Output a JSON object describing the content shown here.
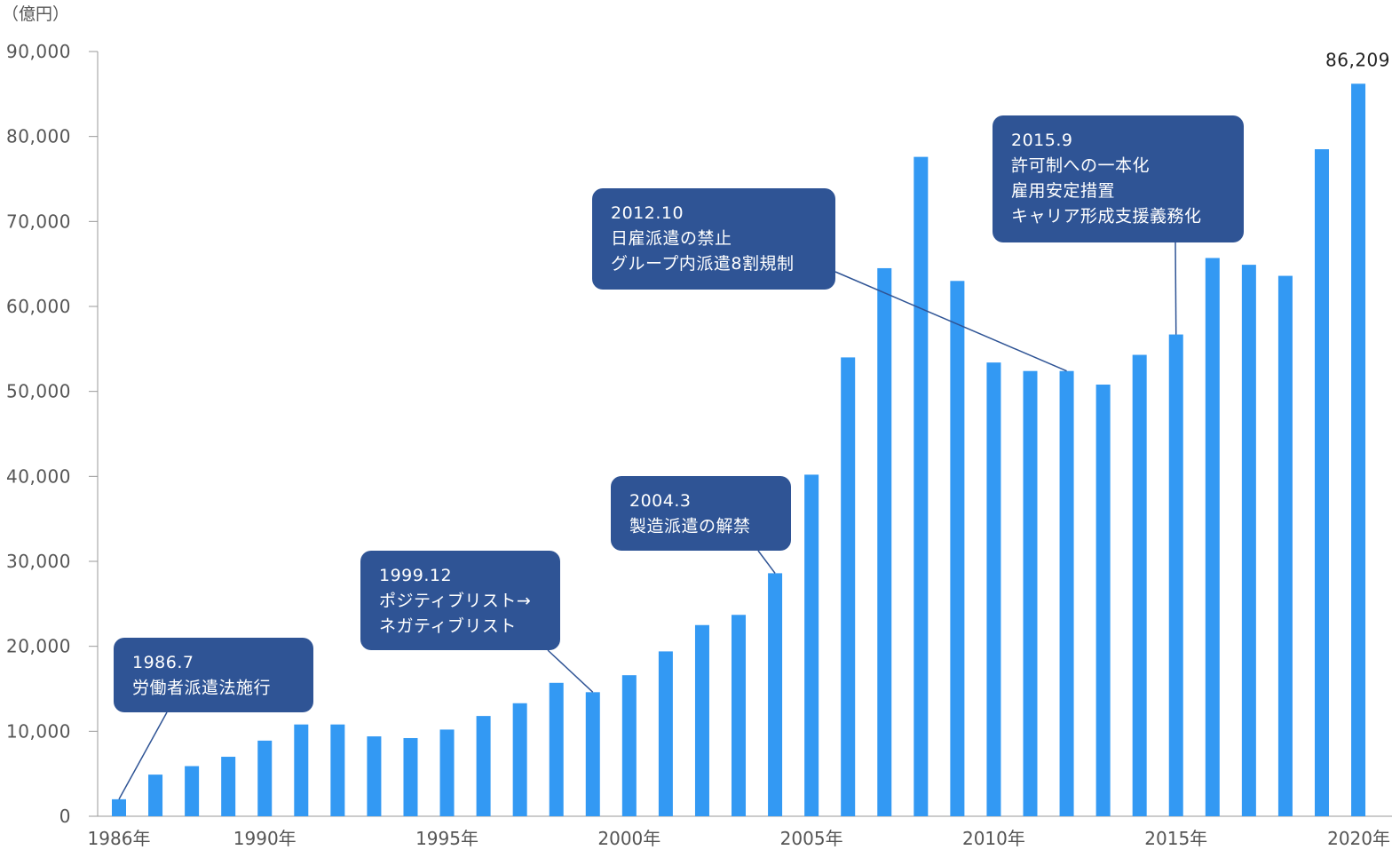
{
  "chart_data": {
    "type": "bar",
    "unit": "（億円）",
    "ylim": [
      0,
      90000
    ],
    "yticks": [
      0,
      10000,
      20000,
      30000,
      40000,
      50000,
      60000,
      70000,
      80000,
      90000
    ],
    "ytick_labels": [
      "0",
      "10,000",
      "20,000",
      "30,000",
      "40,000",
      "50,000",
      "60,000",
      "70,000",
      "80,000",
      "90,000"
    ],
    "xtick_labels": [
      {
        "year": 1986,
        "label": "1986年"
      },
      {
        "year": 1990,
        "label": "1990年"
      },
      {
        "year": 1995,
        "label": "1995年"
      },
      {
        "year": 2000,
        "label": "2000年"
      },
      {
        "year": 2005,
        "label": "2005年"
      },
      {
        "year": 2010,
        "label": "2010年"
      },
      {
        "year": 2015,
        "label": "2015年"
      },
      {
        "year": 2020,
        "label": "2020年"
      }
    ],
    "categories": [
      1986,
      1987,
      1988,
      1989,
      1990,
      1991,
      1992,
      1993,
      1994,
      1995,
      1996,
      1997,
      1998,
      1999,
      2000,
      2001,
      2002,
      2003,
      2004,
      2005,
      2006,
      2007,
      2008,
      2009,
      2010,
      2011,
      2012,
      2013,
      2014,
      2015,
      2016,
      2017,
      2018,
      2019,
      2020
    ],
    "values": [
      2000,
      4900,
      5900,
      7000,
      8900,
      10800,
      10800,
      9400,
      9200,
      10200,
      11800,
      13300,
      15700,
      14600,
      16600,
      19400,
      22500,
      23700,
      28600,
      40200,
      54000,
      64500,
      77600,
      63000,
      53400,
      52400,
      52400,
      50800,
      54300,
      56700,
      65700,
      64900,
      63600,
      78500,
      86209
    ],
    "value_labels": [
      {
        "year": 2020,
        "text": "86,209"
      }
    ],
    "bar_color": "#3399f3",
    "callout_color": "#2f5495",
    "axis_color": "#999999",
    "annotations": [
      {
        "lines": [
          "1986.7",
          "労働者派遣法施行"
        ],
        "year": 1986,
        "value": 2000
      },
      {
        "lines": [
          "1999.12",
          "ポジティブリスト→",
          "ネガティブリスト"
        ],
        "year": 1999,
        "value": 14600
      },
      {
        "lines": [
          "2004.3",
          "製造派遣の解禁"
        ],
        "year": 2004,
        "value": 28600
      },
      {
        "lines": [
          "2012.10",
          "日雇派遣の禁止",
          "グループ内派遣8割規制"
        ],
        "year": 2012,
        "value": 52400
      },
      {
        "lines": [
          "2015.9",
          "許可制への一本化",
          "雇用安定措置",
          "キャリア形成支援義務化"
        ],
        "year": 2015,
        "value": 56700
      }
    ]
  }
}
